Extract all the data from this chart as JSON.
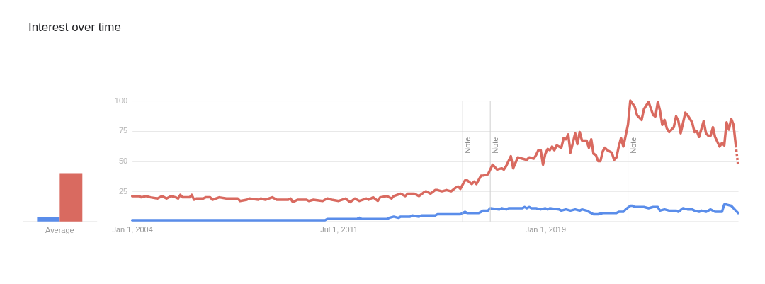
{
  "chart_data": [
    {
      "type": "bar",
      "title": "Interest over time",
      "categories": [
        "Average"
      ],
      "series": [
        {
          "color": "#5a8dea",
          "values": [
            4
          ]
        },
        {
          "color": "#d96a60",
          "values": [
            40
          ]
        }
      ],
      "ylim": [
        0,
        100
      ],
      "tick_labels": "x"
    },
    {
      "type": "line",
      "xlim": [
        "2004-01-01",
        "2026-01-01"
      ],
      "xticks": [
        {
          "value": "2004-01-01",
          "label": "Jan 1, 2004"
        },
        {
          "value": "2011-07-01",
          "label": "Jul 1, 2011"
        },
        {
          "value": "2019-01-01",
          "label": "Jan 1, 2019"
        }
      ],
      "ylim": [
        0,
        100
      ],
      "yticks": [
        25,
        50,
        75,
        100
      ],
      "grid": "y",
      "ref_lines": [
        {
          "axis": "x",
          "value": "2016-01-01",
          "label": "Note",
          "color": "#cfcfcf"
        },
        {
          "axis": "x",
          "value": "2017-01-01",
          "label": "Note",
          "color": "#cfcfcf"
        },
        {
          "axis": "x",
          "value": "2022-01-01",
          "label": "Note",
          "color": "#cfcfcf"
        }
      ],
      "series": [
        {
          "color": "#5a8dea",
          "x": [
            "2004-01",
            "2011-01",
            "2011-02",
            "2012-03",
            "2012-04",
            "2012-05",
            "2013-04",
            "2013-05",
            "2013-07",
            "2013-09",
            "2013-10",
            "2014-02",
            "2014-03",
            "2014-06",
            "2014-07",
            "2015-01",
            "2015-02",
            "2015-12",
            "2016-02",
            "2016-03",
            "2016-08",
            "2016-09",
            "2016-10",
            "2016-12",
            "2017-01",
            "2017-05",
            "2017-06",
            "2017-08",
            "2017-09",
            "2018-03",
            "2018-04",
            "2018-05",
            "2018-06",
            "2018-07",
            "2018-09",
            "2018-11",
            "2019-01",
            "2019-02",
            "2019-03",
            "2019-07",
            "2019-08",
            "2019-10",
            "2019-12",
            "2020-02",
            "2020-04",
            "2020-05",
            "2020-07",
            "2020-08",
            "2020-10",
            "2020-12",
            "2021-02",
            "2021-08",
            "2021-09",
            "2021-11",
            "2021-12",
            "2022-02",
            "2022-03",
            "2022-04",
            "2022-08",
            "2022-10",
            "2022-12",
            "2023-02",
            "2023-03",
            "2023-05",
            "2023-07",
            "2023-10",
            "2023-11",
            "2024-01",
            "2024-03",
            "2024-05",
            "2024-06",
            "2024-08",
            "2024-09",
            "2024-11",
            "2025-01",
            "2025-03",
            "2025-06",
            "2025-07",
            "2025-08",
            "2025-10",
            "2025-11",
            "2025-12",
            "2026-01"
          ],
          "values": [
            1,
            1,
            2,
            2,
            3,
            2,
            2,
            3,
            4,
            3,
            4,
            4,
            5,
            4,
            5,
            5,
            6,
            6,
            8,
            7,
            7,
            8,
            9,
            9,
            11,
            10,
            11,
            10,
            11,
            11,
            12,
            11,
            12,
            11,
            11,
            10,
            11,
            10,
            11,
            10,
            9,
            10,
            9,
            10,
            9,
            10,
            9,
            8,
            6,
            6,
            7,
            7,
            8,
            8,
            10,
            13,
            13,
            12,
            12,
            11,
            12,
            12,
            9,
            10,
            9,
            9,
            8,
            11,
            10,
            10,
            9,
            8,
            9,
            8,
            10,
            8,
            8,
            14,
            14,
            13,
            11,
            9,
            7
          ]
        },
        {
          "color": "#d96a60",
          "x": [
            "2004-01",
            "2004-04",
            "2004-05",
            "2004-07",
            "2004-09",
            "2004-12",
            "2005-02",
            "2005-04",
            "2005-06",
            "2005-08",
            "2005-09",
            "2005-10",
            "2005-11",
            "2006-02",
            "2006-03",
            "2006-04",
            "2006-05",
            "2006-08",
            "2006-09",
            "2006-11",
            "2006-12",
            "2007-03",
            "2007-06",
            "2007-11",
            "2007-12",
            "2008-03",
            "2008-04",
            "2008-08",
            "2008-09",
            "2008-11",
            "2009-02",
            "2009-04",
            "2009-09",
            "2009-10",
            "2009-11",
            "2010-01",
            "2010-05",
            "2010-06",
            "2010-08",
            "2010-12",
            "2011-02",
            "2011-04",
            "2011-07",
            "2011-10",
            "2011-12",
            "2012-02",
            "2012-04",
            "2012-07",
            "2012-08",
            "2012-10",
            "2012-12",
            "2013-01",
            "2013-04",
            "2013-06",
            "2013-07",
            "2013-10",
            "2013-12",
            "2014-01",
            "2014-04",
            "2014-06",
            "2014-08",
            "2014-09",
            "2014-11",
            "2015-01",
            "2015-02",
            "2015-04",
            "2015-06",
            "2015-08",
            "2015-10",
            "2015-11",
            "2015-12",
            "2016-02",
            "2016-03",
            "2016-05",
            "2016-06",
            "2016-07",
            "2016-09",
            "2016-10",
            "2016-12",
            "2017-02",
            "2017-04",
            "2017-06",
            "2017-07",
            "2017-08",
            "2017-10",
            "2017-11",
            "2018-01",
            "2018-03",
            "2018-05",
            "2018-06",
            "2018-08",
            "2018-09",
            "2018-10",
            "2018-11",
            "2018-12",
            "2019-01",
            "2019-02",
            "2019-03",
            "2019-04",
            "2019-05",
            "2019-06",
            "2019-08",
            "2019-09",
            "2019-10",
            "2019-11",
            "2019-12",
            "2020-02",
            "2020-03",
            "2020-04",
            "2020-05",
            "2020-07",
            "2020-08",
            "2020-09",
            "2020-10",
            "2020-11",
            "2020-12",
            "2021-01",
            "2021-02",
            "2021-03",
            "2021-04",
            "2021-06",
            "2021-07",
            "2021-08",
            "2021-09",
            "2021-10",
            "2021-11",
            "2022-01",
            "2022-02",
            "2022-04",
            "2022-05",
            "2022-07",
            "2022-08",
            "2022-10",
            "2022-12",
            "2023-01",
            "2023-02",
            "2023-03",
            "2023-04",
            "2023-05",
            "2023-06",
            "2023-07",
            "2023-09",
            "2023-10",
            "2023-11",
            "2023-12",
            "2024-02",
            "2024-03",
            "2024-05",
            "2024-06",
            "2024-07",
            "2024-08",
            "2024-10",
            "2024-11",
            "2024-12",
            "2025-01",
            "2025-02",
            "2025-03",
            "2025-05",
            "2025-06",
            "2025-07",
            "2025-08",
            "2025-09",
            "2025-10",
            "2025-11",
            "2025-12"
          ],
          "values": [
            21,
            21,
            20,
            21,
            20,
            19,
            21,
            19,
            21,
            20,
            19,
            22,
            20,
            20,
            22,
            18,
            19,
            19,
            20,
            20,
            18,
            20,
            19,
            19,
            17,
            18,
            19,
            18,
            19,
            18,
            20,
            18,
            18,
            19,
            16,
            18,
            18,
            17,
            18,
            17,
            19,
            18,
            17,
            19,
            16,
            19,
            17,
            19,
            18,
            20,
            17,
            20,
            21,
            19,
            21,
            23,
            21,
            23,
            23,
            21,
            24,
            25,
            23,
            26,
            26,
            25,
            26,
            25,
            28,
            29,
            27,
            34,
            34,
            31,
            33,
            31,
            38,
            38,
            39,
            47,
            43,
            44,
            43,
            46,
            54,
            44,
            53,
            52,
            51,
            53,
            52,
            55,
            59,
            59,
            47,
            56,
            60,
            59,
            62,
            59,
            63,
            61,
            69,
            68,
            72,
            57,
            73,
            64,
            74,
            67,
            67,
            61,
            68,
            56,
            55,
            50,
            50,
            58,
            61,
            59,
            57,
            51,
            53,
            62,
            69,
            62,
            80,
            100,
            95,
            88,
            84,
            93,
            99,
            88,
            87,
            99,
            92,
            80,
            84,
            77,
            74,
            78,
            87,
            83,
            73,
            90,
            88,
            82,
            74,
            75,
            70,
            83,
            73,
            71,
            71,
            78,
            70,
            62,
            65,
            63,
            82,
            76,
            85,
            80,
            63
          ]
        },
        {
          "color": "#d96a60",
          "line_style": "dotted",
          "x": [
            "2025-12",
            "2026-01"
          ],
          "values": [
            63,
            46
          ]
        }
      ]
    }
  ]
}
